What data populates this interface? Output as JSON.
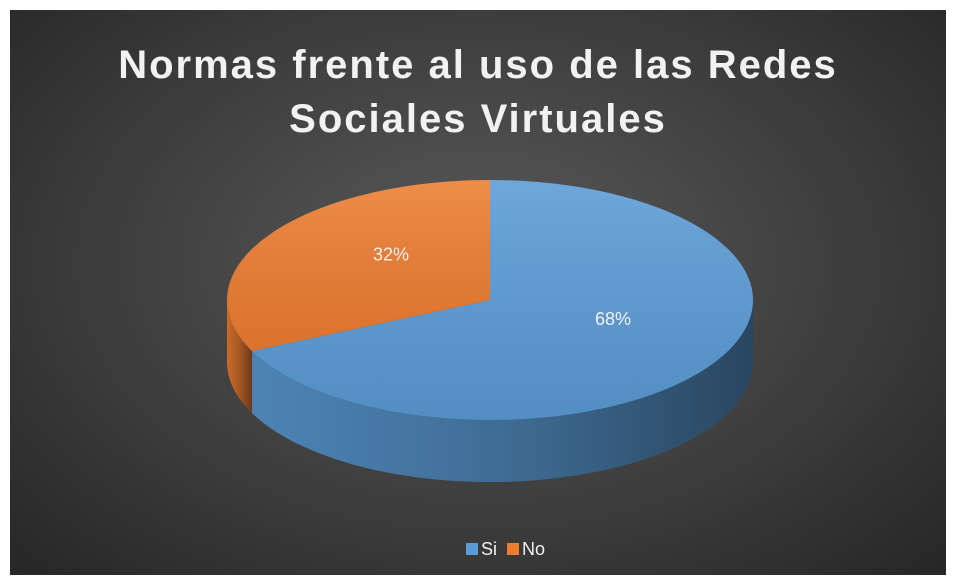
{
  "chart_data": {
    "type": "pie",
    "title": "Normas frente al uso de las Redes Sociales Virtuales",
    "categories": [
      "Si",
      "No"
    ],
    "values": [
      68,
      32
    ],
    "value_labels": [
      "68%",
      "32%"
    ],
    "colors": [
      "#5b9bd5",
      "#ed7d31"
    ],
    "legend": "bottom"
  }
}
